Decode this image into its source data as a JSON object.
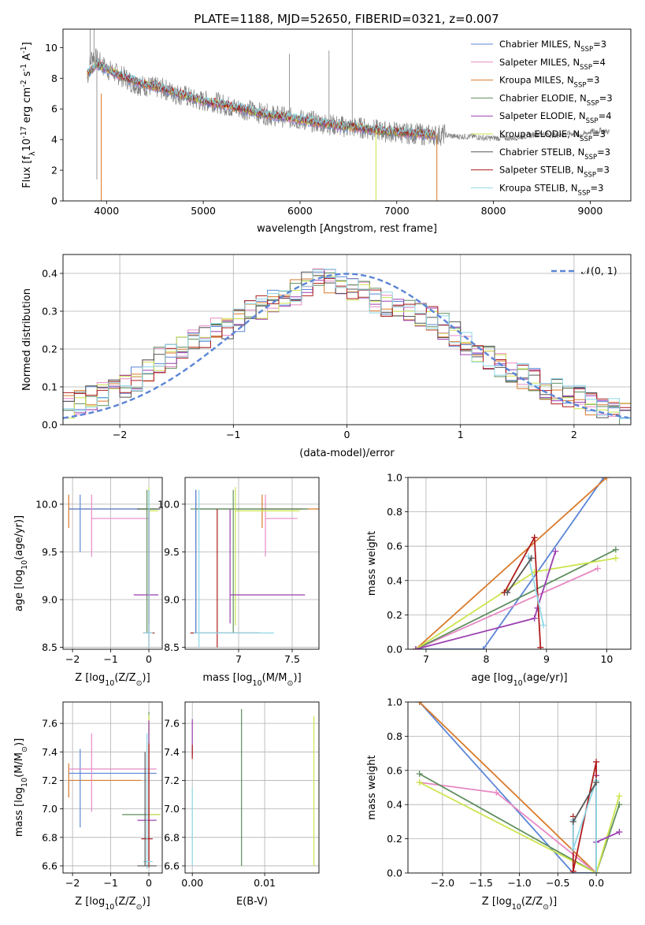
{
  "figure": {
    "title": "PLATE=1188, MJD=52650, FIBERID=0321, z=0.007"
  },
  "series_styles": [
    {
      "name": "Chabrier MILES, N$_{SSP}$=3",
      "name_main": "Chabrier MILES, N",
      "name_sub": "SSP",
      "name_tail": "=3",
      "color": "#5b85d6"
    },
    {
      "name": "Salpeter MILES, N$_{SSP}$=4",
      "name_main": "Salpeter MILES, N",
      "name_sub": "SSP",
      "name_tail": "=4",
      "color": "#e78ac3"
    },
    {
      "name": "Kroupa MILES, N$_{SSP}$=3",
      "name_main": "Kroupa MILES, N",
      "name_sub": "SSP",
      "name_tail": "=3",
      "color": "#d97a2a"
    },
    {
      "name": "Chabrier ELODIE, N$_{SSP}$=3",
      "name_main": "Chabrier ELODIE, N",
      "name_sub": "SSP",
      "name_tail": "=3",
      "color": "#5f8f5f"
    },
    {
      "name": "Salpeter ELODIE, N$_{SSP}$=4",
      "name_main": "Salpeter ELODIE, N",
      "name_sub": "SSP",
      "name_tail": "=4",
      "color": "#9b3fb0"
    },
    {
      "name": "Kroupa ELODIE, N$_{SSP}$=3",
      "name_main": "Kroupa ELODIE, N",
      "name_sub": "SSP",
      "name_tail": "=3",
      "color": "#cde44e"
    },
    {
      "name": "Chabrier STELIB, N$_{SSP}$=3",
      "name_main": "Chabrier STELIB, N",
      "name_sub": "SSP",
      "name_tail": "=3",
      "color": "#555555"
    },
    {
      "name": "Salpeter STELIB, N$_{SSP}$=3",
      "name_main": "Salpeter STELIB, N",
      "name_sub": "SSP",
      "name_tail": "=3",
      "color": "#b01c1c"
    },
    {
      "name": "Kroupa STELIB, N$_{SSP}$=3",
      "name_main": "Kroupa STELIB, N",
      "name_sub": "SSP",
      "name_tail": "=3",
      "color": "#8fd8e8"
    }
  ],
  "chart_data": [
    {
      "id": "spectrum",
      "type": "line",
      "xlabel": "wavelength [Angstrom, rest frame]",
      "ylabel": "Flux [f$_\\lambda$10$^{-17}$ erg cm$^{-2}$ s$^{-1}$ A$^{-1}$]",
      "xlim": [
        3550,
        9420
      ],
      "ylim": [
        0,
        11.2
      ],
      "xticks": [
        4000,
        5000,
        6000,
        7000,
        8000,
        9000
      ],
      "yticks": [
        0,
        2,
        4,
        6,
        8,
        10
      ],
      "legend": "top-right",
      "grid": false,
      "data_color": "#808080",
      "data_x": [
        3800,
        3850,
        3900,
        3950,
        4000,
        4100,
        4200,
        4300,
        4400,
        4500,
        4600,
        4700,
        4800,
        4900,
        5000,
        5100,
        5200,
        5300,
        5400,
        5500,
        5600,
        5700,
        5800,
        5900,
        6000,
        6100,
        6200,
        6300,
        6400,
        6500,
        6600,
        6700,
        6800,
        6900,
        7000,
        7100,
        7200,
        7300,
        7400,
        7500,
        7600,
        7700,
        7800,
        7900,
        8000,
        8100,
        8200,
        8300,
        8400,
        8500,
        8600,
        8700,
        8800,
        8900,
        9000,
        9100,
        9200
      ],
      "data_y": [
        8.0,
        9.5,
        9.2,
        8.9,
        8.6,
        8.3,
        8.0,
        7.6,
        7.5,
        7.4,
        7.3,
        7.0,
        6.9,
        6.6,
        6.5,
        6.5,
        6.3,
        6.1,
        6.0,
        5.9,
        5.7,
        5.6,
        5.5,
        5.4,
        5.3,
        5.2,
        5.1,
        5.0,
        4.9,
        4.8,
        4.8,
        4.7,
        4.6,
        4.5,
        4.5,
        4.4,
        4.4,
        4.3,
        4.3,
        4.3,
        4.2,
        4.2,
        4.2,
        4.1,
        4.1,
        4.1,
        4.1,
        4.2,
        4.3,
        4.4,
        4.3,
        4.3,
        4.4,
        4.3,
        4.5,
        4.6,
        4.5
      ],
      "model_x": [
        3800,
        3900,
        4000,
        4200,
        4400,
        4600,
        4800,
        5000,
        5200,
        5400,
        5600,
        5800,
        6000,
        6200,
        6400,
        6600,
        6800,
        7000,
        7200,
        7400
      ],
      "model_y": [
        8.3,
        8.9,
        8.6,
        8.0,
        7.6,
        7.3,
        6.9,
        6.5,
        6.3,
        6.0,
        5.7,
        5.5,
        5.3,
        5.1,
        4.9,
        4.8,
        4.6,
        4.5,
        4.4,
        4.3
      ]
    },
    {
      "id": "residuals",
      "type": "line",
      "xlabel": "(data-model)/error",
      "ylabel": "Normed distribution",
      "xlim": [
        -2.5,
        2.5
      ],
      "ylim": [
        0,
        0.45
      ],
      "xticks": [
        -2,
        -1,
        0,
        1,
        2
      ],
      "yticks": [
        0.0,
        0.1,
        0.2,
        0.3,
        0.4
      ],
      "grid": true,
      "legend": "top-right",
      "legend_label": "$\\mathcal{N}(0,1)$",
      "legend_label_text": "𝒩(0, 1)",
      "gauss_color": "#5b85d6",
      "bin_edges": [
        -2.5,
        -2.4,
        -2.3,
        -2.2,
        -2.1,
        -2.0,
        -1.9,
        -1.8,
        -1.7,
        -1.6,
        -1.5,
        -1.4,
        -1.3,
        -1.2,
        -1.1,
        -1.0,
        -0.9,
        -0.8,
        -0.7,
        -0.6,
        -0.5,
        -0.4,
        -0.3,
        -0.2,
        -0.1,
        0.0,
        0.1,
        0.2,
        0.3,
        0.4,
        0.5,
        0.6,
        0.7,
        0.8,
        0.9,
        1.0,
        1.1,
        1.2,
        1.3,
        1.4,
        1.5,
        1.6,
        1.7,
        1.8,
        1.9,
        2.0,
        2.1,
        2.2,
        2.3,
        2.4,
        2.5
      ],
      "hist_base": [
        0.05,
        0.06,
        0.07,
        0.08,
        0.09,
        0.1,
        0.12,
        0.14,
        0.17,
        0.18,
        0.2,
        0.22,
        0.23,
        0.25,
        0.26,
        0.28,
        0.3,
        0.31,
        0.33,
        0.34,
        0.35,
        0.37,
        0.38,
        0.38,
        0.37,
        0.36,
        0.35,
        0.33,
        0.32,
        0.31,
        0.3,
        0.29,
        0.28,
        0.26,
        0.24,
        0.22,
        0.2,
        0.18,
        0.16,
        0.14,
        0.13,
        0.12,
        0.1,
        0.09,
        0.08,
        0.07,
        0.06,
        0.05,
        0.04,
        0.03
      ]
    },
    {
      "id": "age_vs_Z",
      "type": "scatter",
      "xlabel": "Z [log$_{10}$($Z/Z_\\odot$)]",
      "ylabel": "age  [log$_{10}$($age/yr$)]",
      "xlim": [
        -2.25,
        0.35
      ],
      "ylim": [
        8.48,
        10.28
      ],
      "xticks": [
        -2,
        -1,
        0
      ],
      "yticks": [
        8.5,
        9.0,
        9.5,
        10.0
      ],
      "grid": true
    },
    {
      "id": "age_vs_mass",
      "type": "scatter",
      "xlabel": "mass [log$_{10}$($M/M_\\odot$)]",
      "xlim": [
        6.5,
        7.75
      ],
      "ylim": [
        8.48,
        10.28
      ],
      "xticks": [
        7.0,
        7.5
      ],
      "yticks": [
        8.5,
        9.0,
        9.5,
        10.0
      ],
      "grid": true
    },
    {
      "id": "massweight_vs_age",
      "type": "line",
      "xlabel": "age  [log$_{10}$($age/yr$)]",
      "ylabel": "mass weight",
      "xlim": [
        6.7,
        10.4
      ],
      "ylim": [
        0,
        1.0
      ],
      "xticks": [
        7,
        8,
        9,
        10
      ],
      "yticks": [
        0.0,
        0.2,
        0.4,
        0.6,
        0.8,
        1.0
      ],
      "grid": true,
      "series": [
        {
          "name": "Chabrier MILES",
          "x": [
            6.83,
            7.95,
            9.95
          ],
          "y": [
            0.0,
            0.0,
            1.0
          ]
        },
        {
          "name": "Kroupa MILES",
          "x": [
            6.83,
            10.0
          ],
          "y": [
            0.0,
            1.0
          ]
        },
        {
          "name": "Salpeter MILES",
          "x": [
            6.83,
            9.85
          ],
          "y": [
            0.0,
            0.47
          ]
        },
        {
          "name": "Chabrier ELODIE",
          "x": [
            6.83,
            10.15
          ],
          "y": [
            0.0,
            0.58
          ]
        },
        {
          "name": "Kroupa ELODIE",
          "x": [
            6.83,
            8.8,
            10.15
          ],
          "y": [
            0.0,
            0.45,
            0.53
          ]
        },
        {
          "name": "Salpeter ELODIE",
          "x": [
            6.83,
            8.8,
            8.85,
            9.15
          ],
          "y": [
            0.0,
            0.18,
            0.24,
            0.57
          ]
        },
        {
          "name": "Salpeter STELIB",
          "x": [
            8.3,
            8.8,
            8.9
          ],
          "y": [
            0.33,
            0.65,
            0.01
          ]
        },
        {
          "name": "Kroupa STELIB",
          "x": [
            8.7,
            8.95
          ],
          "y": [
            0.54,
            0.14
          ]
        },
        {
          "name": "Chabrier STELIB",
          "x": [
            8.35,
            8.75
          ],
          "y": [
            0.33,
            0.53
          ]
        }
      ]
    },
    {
      "id": "mass_vs_Z",
      "type": "scatter",
      "xlabel": "Z [log$_{10}$($Z/Z_\\odot$)]",
      "ylabel": "mass [log$_{10}$($M/M_\\odot$)]",
      "xlim": [
        -2.25,
        0.35
      ],
      "ylim": [
        6.55,
        7.75
      ],
      "xticks": [
        -2,
        -1,
        0
      ],
      "yticks": [
        6.6,
        6.8,
        7.0,
        7.2,
        7.4,
        7.6
      ],
      "grid": true
    },
    {
      "id": "mass_vs_ebv",
      "type": "scatter",
      "xlabel": "E(B-V)",
      "xlim": [
        -0.001,
        0.0175
      ],
      "ylim": [
        6.55,
        7.75
      ],
      "xticks": [
        0.0,
        0.01
      ],
      "xticklabels": [
        "0.00",
        "0.01"
      ],
      "yticks": [
        6.6,
        6.8,
        7.0,
        7.2,
        7.4,
        7.6
      ],
      "grid": true
    },
    {
      "id": "massweight_vs_Z",
      "type": "line",
      "xlabel": "Z [log$_{10}$($Z/Z_\\odot$)]",
      "ylabel": "mass weight",
      "xlim": [
        -2.45,
        0.45
      ],
      "ylim": [
        0,
        1.0
      ],
      "xticks": [
        -2.0,
        -1.5,
        -1.0,
        -0.5,
        0.0
      ],
      "xticklabels": [
        "−2.0",
        "−1.5",
        "−1.0",
        "−0.5",
        "0.0"
      ],
      "yticks": [
        0.0,
        0.2,
        0.4,
        0.6,
        0.8,
        1.0
      ],
      "grid": true,
      "series": [
        {
          "name": "Chabrier MILES",
          "x": [
            -2.3,
            -0.3,
            0.0
          ],
          "y": [
            1.0,
            0.0,
            0.0
          ]
        },
        {
          "name": "Kroupa MILES",
          "x": [
            -2.3,
            0.0
          ],
          "y": [
            1.0,
            0.0
          ]
        },
        {
          "name": "Salpeter MILES",
          "x": [
            -2.3,
            -1.3,
            0.0
          ],
          "y": [
            0.53,
            0.47,
            0.0
          ]
        },
        {
          "name": "Chabrier ELODIE",
          "x": [
            -2.3,
            0.0,
            0.3
          ],
          "y": [
            0.58,
            0.0,
            0.4
          ]
        },
        {
          "name": "Kroupa ELODIE",
          "x": [
            -2.3,
            0.0,
            0.3
          ],
          "y": [
            0.53,
            0.0,
            0.45
          ]
        },
        {
          "name": "Salpeter ELODIE",
          "x": [
            0.0,
            0.0,
            0.3
          ],
          "y": [
            0.57,
            0.18,
            0.24
          ]
        },
        {
          "name": "Salpeter STELIB",
          "x": [
            -0.3,
            -0.3,
            0.0,
            0.0
          ],
          "y": [
            0.33,
            0.01,
            0.65,
            0.0
          ]
        },
        {
          "name": "Kroupa STELIB",
          "x": [
            -0.3,
            -0.3,
            0.0,
            0.0
          ],
          "y": [
            0.31,
            0.14,
            0.54,
            0.0
          ]
        },
        {
          "name": "Chabrier STELIB",
          "x": [
            -0.3,
            0.0
          ],
          "y": [
            0.3,
            0.53
          ]
        }
      ]
    }
  ],
  "errorbars": {
    "age_vs_Z": [
      {
        "color": "#d97a2a",
        "x": -2.1,
        "y": 9.95,
        "xerr": [
          0.0,
          2.3
        ],
        "yerr": [
          0.2,
          0.15
        ]
      },
      {
        "color": "#5b85d6",
        "x": -1.8,
        "y": 9.95,
        "xerr": [
          0.3,
          2.0
        ],
        "yerr": [
          0.45,
          0.15
        ]
      },
      {
        "color": "#e78ac3",
        "x": -1.5,
        "y": 9.85,
        "xerr": [
          0.0,
          1.5
        ],
        "yerr": [
          0.4,
          0.25
        ]
      },
      {
        "color": "#555555",
        "x": 0.0,
        "y": 9.95,
        "xerr": [
          0.3,
          0.3
        ],
        "yerr": [
          1.3,
          0.2
        ]
      },
      {
        "color": "#5f8f5f",
        "x": -0.05,
        "y": 9.95,
        "xerr": [
          0.2,
          0.25
        ],
        "yerr": [
          1.3,
          0.2
        ]
      },
      {
        "color": "#cde44e",
        "x": 0.0,
        "y": 9.93,
        "xerr": [
          0.0,
          0.25
        ],
        "yerr": [
          1.2,
          0.25
        ]
      },
      {
        "color": "#9b3fb0",
        "x": 0.0,
        "y": 9.05,
        "xerr": [
          0.4,
          0.25
        ],
        "yerr": [
          0.3,
          0.9
        ]
      },
      {
        "color": "#b01c1c",
        "x": 0.0,
        "y": 8.65,
        "xerr": [
          0.15,
          0.15
        ],
        "yerr": [
          0.15,
          1.3
        ]
      },
      {
        "color": "#8fd8e8",
        "x": 0.0,
        "y": 8.65,
        "xerr": [
          0.15,
          0.1
        ],
        "yerr": [
          0.15,
          1.5
        ]
      }
    ],
    "age_vs_mass": [
      {
        "color": "#d97a2a",
        "x": 7.22,
        "y": 9.95,
        "xerr": [
          0.0,
          0.6
        ],
        "yerr": [
          0.2,
          0.15
        ]
      },
      {
        "color": "#e78ac3",
        "x": 7.25,
        "y": 9.85,
        "xerr": [
          0.0,
          0.3
        ],
        "yerr": [
          0.4,
          0.25
        ]
      },
      {
        "color": "#555555",
        "x": 6.6,
        "y": 9.95,
        "xerr": [
          0.0,
          1.0
        ],
        "yerr": [
          1.3,
          0.2
        ]
      },
      {
        "color": "#5f8f5f",
        "x": 6.95,
        "y": 9.95,
        "xerr": [
          0.4,
          0.7
        ],
        "yerr": [
          1.3,
          0.2
        ]
      },
      {
        "color": "#cde44e",
        "x": 6.97,
        "y": 9.93,
        "xerr": [
          0.0,
          0.6
        ],
        "yerr": [
          1.2,
          0.25
        ]
      },
      {
        "color": "#9b3fb0",
        "x": 6.92,
        "y": 9.05,
        "xerr": [
          0.0,
          0.7
        ],
        "yerr": [
          0.3,
          0.9
        ]
      },
      {
        "color": "#b01c1c",
        "x": 6.8,
        "y": 8.65,
        "xerr": [
          0.25,
          0.4
        ],
        "yerr": [
          0.15,
          1.3
        ]
      },
      {
        "color": "#8fd8e8",
        "x": 6.63,
        "y": 8.65,
        "xerr": [
          0.05,
          0.7
        ],
        "yerr": [
          0.15,
          1.5
        ]
      },
      {
        "color": "#5b85d6",
        "x": 6.6,
        "y": 9.95,
        "xerr": [
          0.0,
          0.0
        ],
        "yerr": [
          1.3,
          0.2
        ]
      }
    ],
    "mass_vs_Z": [
      {
        "color": "#d97a2a",
        "x": -2.1,
        "y": 7.2,
        "xerr": [
          0.0,
          1.9
        ],
        "yerr": [
          0.12,
          0.12
        ]
      },
      {
        "color": "#5b85d6",
        "x": -1.8,
        "y": 7.25,
        "xerr": [
          0.3,
          2.0
        ],
        "yerr": [
          0.38,
          0.17
        ]
      },
      {
        "color": "#e78ac3",
        "x": -1.5,
        "y": 7.28,
        "xerr": [
          0.6,
          1.7
        ],
        "yerr": [
          0.3,
          0.25
        ]
      },
      {
        "color": "#5f8f5f",
        "x": 0.0,
        "y": 6.96,
        "xerr": [
          0.7,
          0.3
        ],
        "yerr": [
          0.36,
          0.72
        ]
      },
      {
        "color": "#cde44e",
        "x": 0.0,
        "y": 6.96,
        "xerr": [
          0.0,
          0.3
        ],
        "yerr": [
          0.3,
          0.7
        ]
      },
      {
        "color": "#9b3fb0",
        "x": 0.0,
        "y": 6.92,
        "xerr": [
          0.3,
          0.2
        ],
        "yerr": [
          0.3,
          0.7
        ]
      },
      {
        "color": "#b01c1c",
        "x": 0.0,
        "y": 6.79,
        "xerr": [
          0.2,
          0.1
        ],
        "yerr": [
          0.2,
          0.67
        ]
      },
      {
        "color": "#8fd8e8",
        "x": -0.05,
        "y": 6.63,
        "xerr": [
          0.1,
          0.15
        ],
        "yerr": [
          0.05,
          0.9
        ]
      },
      {
        "color": "#555555",
        "x": -0.1,
        "y": 6.6,
        "xerr": [
          0.2,
          0.3
        ],
        "yerr": [
          0.0,
          0.8
        ]
      }
    ],
    "mass_vs_ebv": [
      {
        "color": "#9b3fb0",
        "x": 0.0,
        "y": 7.5,
        "xerr": [
          0.0,
          0.0
        ],
        "yerr": [
          0.13,
          0.13
        ]
      },
      {
        "color": "#b01c1c",
        "x": 0.0,
        "y": 7.4,
        "xerr": [
          0.0,
          0.0
        ],
        "yerr": [
          0.05,
          0.05
        ]
      },
      {
        "color": "#8fd8e8",
        "x": 0.0,
        "y": 6.65,
        "xerr": [
          0.0,
          0.0
        ],
        "yerr": [
          0.05,
          0.5
        ]
      },
      {
        "color": "#5f8f5f",
        "x": 0.0068,
        "y": 7.15,
        "xerr": [
          0.0,
          0.0
        ],
        "yerr": [
          0.55,
          0.55
        ]
      },
      {
        "color": "#cde44e",
        "x": 0.0168,
        "y": 7.1,
        "xerr": [
          0.0,
          0.0
        ],
        "yerr": [
          0.5,
          0.55
        ]
      }
    ]
  }
}
